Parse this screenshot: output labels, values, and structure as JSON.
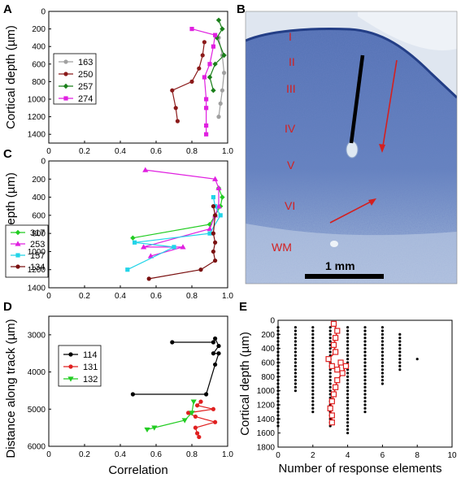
{
  "panel_labels": {
    "a": "A",
    "b": "B",
    "c": "C",
    "d": "D",
    "e": "E"
  },
  "histology": {
    "layers": [
      "I",
      "II",
      "III",
      "IV",
      "V",
      "VI",
      "WM"
    ],
    "scale_label": "1 mm",
    "colors": {
      "tissue": "#5b78b8",
      "annotation": "#d32020",
      "electrode": "#000000"
    }
  },
  "chart_data": [
    {
      "panel": "A",
      "type": "line",
      "title": "",
      "xlabel": "",
      "ylabel": "Cortical depth (µm)",
      "xlim": [
        0,
        1
      ],
      "ylim": [
        1500,
        0
      ],
      "y_reversed": true,
      "x_ticks": [
        "0",
        "0.2",
        "0.4",
        "0.6",
        "0.8",
        "1.0"
      ],
      "y_ticks": [
        "0",
        "200",
        "400",
        "600",
        "800",
        "1000",
        "1200",
        "1400"
      ],
      "legend": "left",
      "series": [
        {
          "name": "163",
          "color": "#a0a0a0",
          "marker": "circle",
          "points": [
            [
              0.95,
              300
            ],
            [
              0.97,
              500
            ],
            [
              0.98,
              700
            ],
            [
              0.97,
              900
            ],
            [
              0.96,
              1050
            ],
            [
              0.95,
              1200
            ]
          ]
        },
        {
          "name": "250",
          "color": "#8b1a1a",
          "marker": "circle",
          "points": [
            [
              0.87,
              350
            ],
            [
              0.86,
              500
            ],
            [
              0.84,
              650
            ],
            [
              0.8,
              800
            ],
            [
              0.69,
              900
            ],
            [
              0.71,
              1100
            ],
            [
              0.72,
              1250
            ]
          ]
        },
        {
          "name": "257",
          "color": "#1a7f1a",
          "marker": "diamond",
          "points": [
            [
              0.95,
              100
            ],
            [
              0.97,
              200
            ],
            [
              0.94,
              300
            ],
            [
              0.98,
              500
            ],
            [
              0.93,
              600
            ],
            [
              0.9,
              750
            ],
            [
              0.92,
              900
            ]
          ]
        },
        {
          "name": "274",
          "color": "#e020e0",
          "marker": "square",
          "points": [
            [
              0.8,
              200
            ],
            [
              0.93,
              270
            ],
            [
              0.92,
              400
            ],
            [
              0.9,
              600
            ],
            [
              0.87,
              750
            ],
            [
              0.88,
              1000
            ],
            [
              0.88,
              1100
            ],
            [
              0.88,
              1300
            ],
            [
              0.88,
              1400
            ]
          ]
        }
      ]
    },
    {
      "panel": "C",
      "type": "line",
      "title": "",
      "xlabel": "",
      "ylabel": "Cortical depth (µm)",
      "xlim": [
        0,
        1
      ],
      "ylim": [
        1400,
        0
      ],
      "y_reversed": true,
      "x_ticks": [
        "0",
        "0.2",
        "0.4",
        "0.6",
        "0.8",
        "1.0"
      ],
      "y_ticks": [
        "0",
        "200",
        "400",
        "600",
        "800",
        "1000",
        "1200",
        "1400"
      ],
      "legend": "left",
      "series": [
        {
          "name": "317",
          "color": "#22cc22",
          "marker": "diamond",
          "points": [
            [
              0.95,
              300
            ],
            [
              0.97,
              400
            ],
            [
              0.96,
              500
            ],
            [
              0.93,
              600
            ],
            [
              0.9,
              700
            ],
            [
              0.47,
              850
            ]
          ]
        },
        {
          "name": "253",
          "color": "#e020e0",
          "marker": "triangle",
          "points": [
            [
              0.54,
              100
            ],
            [
              0.93,
              200
            ],
            [
              0.95,
              300
            ],
            [
              0.95,
              500
            ],
            [
              0.93,
              600
            ],
            [
              0.9,
              750
            ],
            [
              0.53,
              950
            ],
            [
              0.75,
              950
            ],
            [
              0.57,
              1050
            ]
          ]
        },
        {
          "name": "157",
          "color": "#22d4e8",
          "marker": "square",
          "points": [
            [
              0.92,
              400
            ],
            [
              0.93,
              500
            ],
            [
              0.96,
              600
            ],
            [
              0.9,
              800
            ],
            [
              0.48,
              900
            ],
            [
              0.7,
              950
            ],
            [
              0.44,
              1200
            ]
          ]
        },
        {
          "name": "134",
          "color": "#7a1010",
          "marker": "circle",
          "points": [
            [
              0.92,
              500
            ],
            [
              0.93,
              600
            ],
            [
              0.92,
              800
            ],
            [
              0.93,
              900
            ],
            [
              0.92,
              1000
            ],
            [
              0.93,
              1100
            ],
            [
              0.85,
              1200
            ],
            [
              0.56,
              1300
            ]
          ]
        }
      ]
    },
    {
      "panel": "D",
      "type": "line",
      "title": "",
      "xlabel": "Correlation",
      "ylabel": "Distance along track (µm)",
      "xlim": [
        0,
        1
      ],
      "ylim": [
        6000,
        2500
      ],
      "y_reversed": true,
      "x_ticks": [
        "0",
        "0.2",
        "0.4",
        "0.6",
        "0.8",
        "1.0"
      ],
      "y_ticks": [
        "3000",
        "4000",
        "5000",
        "6000"
      ],
      "legend": "left",
      "series": [
        {
          "name": "114",
          "color": "#000000",
          "marker": "circle",
          "points": [
            [
              0.69,
              3200
            ],
            [
              0.92,
              3200
            ],
            [
              0.93,
              3100
            ],
            [
              0.95,
              3300
            ],
            [
              0.92,
              3500
            ],
            [
              0.95,
              3500
            ],
            [
              0.93,
              3800
            ],
            [
              0.88,
              4600
            ],
            [
              0.47,
              4600
            ]
          ]
        },
        {
          "name": "131",
          "color": "#e02020",
          "marker": "circle",
          "points": [
            [
              0.85,
              4800
            ],
            [
              0.83,
              4900
            ],
            [
              0.92,
              5000
            ],
            [
              0.78,
              5100
            ],
            [
              0.82,
              5200
            ],
            [
              0.93,
              5350
            ],
            [
              0.82,
              5500
            ],
            [
              0.83,
              5650
            ],
            [
              0.84,
              5750
            ]
          ]
        },
        {
          "name": "132",
          "color": "#22cc22",
          "marker": "triangle-down",
          "points": [
            [
              0.81,
              4800
            ],
            [
              0.8,
              5100
            ],
            [
              0.76,
              5300
            ],
            [
              0.59,
              5500
            ],
            [
              0.55,
              5550
            ]
          ]
        }
      ]
    },
    {
      "panel": "E",
      "type": "scatter",
      "title": "",
      "xlabel": "Number of response elements",
      "ylabel": "Cortical depth (µm)",
      "xlim": [
        0,
        10
      ],
      "ylim": [
        1800,
        0
      ],
      "y_reversed": true,
      "x_ticks": [
        "0",
        "2",
        "4",
        "6",
        "8",
        "10"
      ],
      "y_ticks": [
        "0",
        "200",
        "400",
        "600",
        "800",
        "1000",
        "1200",
        "1400",
        "1600",
        "1800"
      ],
      "columns": [
        {
          "x": 0,
          "y_from": 100,
          "y_to": 1500
        },
        {
          "x": 1,
          "y_from": 100,
          "y_to": 1000
        },
        {
          "x": 2,
          "y_from": 100,
          "y_to": 1300
        },
        {
          "x": 3,
          "y_from": 100,
          "y_to": 1500
        },
        {
          "x": 4,
          "y_from": 100,
          "y_to": 1600
        },
        {
          "x": 5,
          "y_from": 100,
          "y_to": 1300
        },
        {
          "x": 6,
          "y_from": 100,
          "y_to": 900
        },
        {
          "x": 7,
          "y_from": 200,
          "y_to": 700
        }
      ],
      "extra_points": [
        [
          8,
          550
        ]
      ],
      "mean_line": {
        "color": "#e02020",
        "points": [
          [
            3.2,
            50
          ],
          [
            3.4,
            150
          ],
          [
            3.3,
            250
          ],
          [
            3.2,
            350
          ],
          [
            3.3,
            450
          ],
          [
            2.9,
            550
          ],
          [
            3.1,
            650
          ],
          [
            3.4,
            700
          ],
          [
            3.6,
            600
          ],
          [
            3.9,
            650
          ],
          [
            3.7,
            750
          ],
          [
            3.4,
            850
          ],
          [
            3.3,
            950
          ],
          [
            3.2,
            1050
          ],
          [
            3.1,
            1150
          ],
          [
            3.0,
            1250
          ],
          [
            3.1,
            1350
          ],
          [
            3.1,
            1450
          ]
        ]
      }
    }
  ]
}
